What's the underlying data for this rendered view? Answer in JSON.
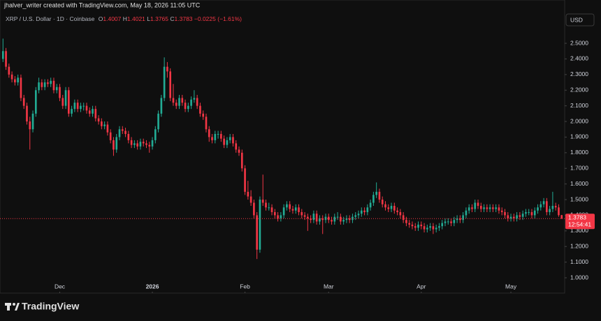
{
  "header": {
    "credit": "jhalver_writer created with TradingView.com, May 18, 2026 11:05 UTC",
    "symbol": "XRP / U.S. Dollar · 1D · Coinbase",
    "ohlc_labels": [
      "O",
      "H",
      "L",
      "C"
    ],
    "change": {
      "value": -0.0225,
      "label": "−0.0225"
    },
    "change_pct": {
      "value": -1.61,
      "label": "(−1.61%)"
    },
    "currency": "USD"
  },
  "chart_data": {
    "type": "candlestick",
    "up_color": "#22ab94",
    "down_color": "#f23645",
    "candles": [
      [
        2.4,
        2.53,
        2.38,
        2.45
      ],
      [
        2.45,
        2.47,
        2.33,
        2.35
      ],
      [
        2.35,
        2.37,
        2.28,
        2.3
      ],
      [
        2.3,
        2.32,
        2.25,
        2.27
      ],
      [
        2.27,
        2.29,
        2.23,
        2.25
      ],
      [
        2.25,
        2.3,
        2.23,
        2.28
      ],
      [
        2.28,
        2.3,
        2.13,
        2.15
      ],
      [
        2.15,
        2.17,
        2.08,
        2.1
      ],
      [
        2.1,
        2.12,
        1.98,
        2.0
      ],
      [
        2.0,
        2.03,
        1.82,
        1.95
      ],
      [
        1.95,
        2.07,
        1.93,
        2.05
      ],
      [
        2.05,
        2.22,
        2.03,
        2.2
      ],
      [
        2.2,
        2.28,
        2.18,
        2.25
      ],
      [
        2.25,
        2.27,
        2.2,
        2.22
      ],
      [
        2.22,
        2.27,
        2.2,
        2.25
      ],
      [
        2.25,
        2.27,
        2.22,
        2.24
      ],
      [
        2.24,
        2.28,
        2.22,
        2.26
      ],
      [
        2.26,
        2.28,
        2.18,
        2.2
      ],
      [
        2.2,
        2.24,
        2.18,
        2.22
      ],
      [
        2.22,
        2.24,
        2.13,
        2.15
      ],
      [
        2.15,
        2.17,
        2.08,
        2.1
      ],
      [
        2.1,
        2.22,
        2.08,
        2.2
      ],
      [
        2.2,
        2.22,
        2.03,
        2.05
      ],
      [
        2.05,
        2.1,
        2.03,
        2.08
      ],
      [
        2.08,
        2.14,
        2.06,
        2.12
      ],
      [
        2.12,
        2.14,
        2.06,
        2.08
      ],
      [
        2.08,
        2.12,
        2.06,
        2.1
      ],
      [
        2.1,
        2.12,
        2.07,
        2.1
      ],
      [
        2.1,
        2.12,
        2.05,
        2.07
      ],
      [
        2.07,
        2.09,
        2.03,
        2.05
      ],
      [
        2.05,
        2.1,
        2.03,
        2.08
      ],
      [
        2.08,
        2.1,
        2.0,
        2.02
      ],
      [
        2.02,
        2.04,
        1.98,
        2.0
      ],
      [
        2.0,
        2.02,
        1.95,
        1.97
      ],
      [
        1.97,
        2.0,
        1.95,
        1.98
      ],
      [
        1.98,
        2.0,
        1.91,
        1.93
      ],
      [
        1.93,
        1.95,
        1.86,
        1.88
      ],
      [
        1.88,
        1.9,
        1.78,
        1.82
      ],
      [
        1.82,
        1.92,
        1.8,
        1.9
      ],
      [
        1.9,
        1.97,
        1.88,
        1.95
      ],
      [
        1.95,
        1.97,
        1.92,
        1.94
      ],
      [
        1.94,
        1.96,
        1.9,
        1.92
      ],
      [
        1.92,
        1.94,
        1.86,
        1.88
      ],
      [
        1.88,
        1.9,
        1.83,
        1.85
      ],
      [
        1.85,
        1.88,
        1.83,
        1.86
      ],
      [
        1.86,
        1.88,
        1.82,
        1.84
      ],
      [
        1.84,
        1.89,
        1.82,
        1.87
      ],
      [
        1.87,
        1.89,
        1.84,
        1.86
      ],
      [
        1.86,
        1.88,
        1.83,
        1.85
      ],
      [
        1.85,
        1.87,
        1.8,
        1.84
      ],
      [
        1.84,
        1.9,
        1.82,
        1.88
      ],
      [
        1.88,
        1.97,
        1.86,
        1.95
      ],
      [
        1.95,
        2.07,
        1.93,
        2.05
      ],
      [
        2.05,
        2.17,
        2.03,
        2.15
      ],
      [
        2.15,
        2.41,
        2.13,
        2.35
      ],
      [
        2.35,
        2.38,
        2.28,
        2.32
      ],
      [
        2.32,
        2.34,
        2.13,
        2.15
      ],
      [
        2.15,
        2.24,
        2.1,
        2.12
      ],
      [
        2.12,
        2.14,
        2.08,
        2.1
      ],
      [
        2.1,
        2.17,
        2.08,
        2.15
      ],
      [
        2.15,
        2.17,
        2.1,
        2.12
      ],
      [
        2.12,
        2.14,
        2.06,
        2.08
      ],
      [
        2.08,
        2.12,
        2.06,
        2.1
      ],
      [
        2.1,
        2.16,
        2.08,
        2.14
      ],
      [
        2.14,
        2.2,
        2.12,
        2.15
      ],
      [
        2.15,
        2.17,
        2.08,
        2.1
      ],
      [
        2.1,
        2.12,
        2.03,
        2.05
      ],
      [
        2.05,
        2.07,
        2.01,
        2.03
      ],
      [
        2.03,
        2.05,
        1.93,
        1.95
      ],
      [
        1.95,
        1.97,
        1.87,
        1.9
      ],
      [
        1.9,
        1.92,
        1.86,
        1.88
      ],
      [
        1.88,
        1.94,
        1.86,
        1.92
      ],
      [
        1.92,
        1.94,
        1.89,
        1.92
      ],
      [
        1.92,
        1.94,
        1.87,
        1.89
      ],
      [
        1.89,
        1.91,
        1.83,
        1.85
      ],
      [
        1.85,
        1.9,
        1.83,
        1.88
      ],
      [
        1.88,
        1.92,
        1.86,
        1.9
      ],
      [
        1.9,
        1.92,
        1.84,
        1.86
      ],
      [
        1.86,
        1.88,
        1.8,
        1.82
      ],
      [
        1.82,
        1.84,
        1.78,
        1.8
      ],
      [
        1.8,
        1.82,
        1.68,
        1.7
      ],
      [
        1.7,
        1.72,
        1.53,
        1.55
      ],
      [
        1.55,
        1.62,
        1.5,
        1.52
      ],
      [
        1.52,
        1.56,
        1.46,
        1.48
      ],
      [
        1.48,
        1.5,
        1.38,
        1.4
      ],
      [
        1.4,
        1.42,
        1.12,
        1.18
      ],
      [
        1.18,
        1.52,
        1.16,
        1.5
      ],
      [
        1.5,
        1.66,
        1.46,
        1.48
      ],
      [
        1.48,
        1.5,
        1.43,
        1.45
      ],
      [
        1.45,
        1.48,
        1.43,
        1.45
      ],
      [
        1.45,
        1.47,
        1.4,
        1.42
      ],
      [
        1.42,
        1.44,
        1.38,
        1.4
      ],
      [
        1.4,
        1.42,
        1.36,
        1.38
      ],
      [
        1.38,
        1.42,
        1.36,
        1.4
      ],
      [
        1.4,
        1.47,
        1.38,
        1.45
      ],
      [
        1.45,
        1.49,
        1.43,
        1.47
      ],
      [
        1.47,
        1.49,
        1.42,
        1.44
      ],
      [
        1.44,
        1.46,
        1.41,
        1.43
      ],
      [
        1.43,
        1.47,
        1.41,
        1.45
      ],
      [
        1.45,
        1.47,
        1.4,
        1.42
      ],
      [
        1.42,
        1.44,
        1.38,
        1.4
      ],
      [
        1.4,
        1.42,
        1.37,
        1.39
      ],
      [
        1.39,
        1.41,
        1.3,
        1.38
      ],
      [
        1.38,
        1.4,
        1.35,
        1.37
      ],
      [
        1.37,
        1.43,
        1.35,
        1.41
      ],
      [
        1.41,
        1.43,
        1.34,
        1.36
      ],
      [
        1.36,
        1.4,
        1.34,
        1.38
      ],
      [
        1.38,
        1.4,
        1.28,
        1.37
      ],
      [
        1.37,
        1.41,
        1.35,
        1.39
      ],
      [
        1.39,
        1.41,
        1.35,
        1.37
      ],
      [
        1.37,
        1.39,
        1.34,
        1.36
      ],
      [
        1.36,
        1.41,
        1.34,
        1.39
      ],
      [
        1.39,
        1.42,
        1.37,
        1.39
      ],
      [
        1.39,
        1.41,
        1.34,
        1.36
      ],
      [
        1.36,
        1.39,
        1.34,
        1.37
      ],
      [
        1.37,
        1.4,
        1.35,
        1.38
      ],
      [
        1.38,
        1.4,
        1.35,
        1.37
      ],
      [
        1.37,
        1.41,
        1.35,
        1.39
      ],
      [
        1.39,
        1.42,
        1.37,
        1.4
      ],
      [
        1.4,
        1.43,
        1.38,
        1.41
      ],
      [
        1.41,
        1.45,
        1.39,
        1.43
      ],
      [
        1.43,
        1.45,
        1.4,
        1.42
      ],
      [
        1.42,
        1.47,
        1.4,
        1.45
      ],
      [
        1.45,
        1.5,
        1.43,
        1.48
      ],
      [
        1.48,
        1.55,
        1.46,
        1.53
      ],
      [
        1.53,
        1.61,
        1.51,
        1.55
      ],
      [
        1.55,
        1.57,
        1.48,
        1.5
      ],
      [
        1.5,
        1.52,
        1.45,
        1.47
      ],
      [
        1.47,
        1.49,
        1.43,
        1.45
      ],
      [
        1.45,
        1.47,
        1.42,
        1.44
      ],
      [
        1.44,
        1.48,
        1.42,
        1.46
      ],
      [
        1.46,
        1.48,
        1.41,
        1.43
      ],
      [
        1.43,
        1.45,
        1.4,
        1.42
      ],
      [
        1.42,
        1.44,
        1.38,
        1.4
      ],
      [
        1.4,
        1.42,
        1.35,
        1.37
      ],
      [
        1.37,
        1.39,
        1.33,
        1.35
      ],
      [
        1.35,
        1.37,
        1.32,
        1.34
      ],
      [
        1.34,
        1.36,
        1.31,
        1.33
      ],
      [
        1.33,
        1.35,
        1.3,
        1.32
      ],
      [
        1.32,
        1.36,
        1.3,
        1.34
      ],
      [
        1.34,
        1.36,
        1.31,
        1.33
      ],
      [
        1.33,
        1.35,
        1.29,
        1.31
      ],
      [
        1.31,
        1.34,
        1.29,
        1.32
      ],
      [
        1.32,
        1.35,
        1.3,
        1.33
      ],
      [
        1.33,
        1.35,
        1.28,
        1.31
      ],
      [
        1.31,
        1.34,
        1.29,
        1.32
      ],
      [
        1.32,
        1.35,
        1.3,
        1.33
      ],
      [
        1.33,
        1.37,
        1.31,
        1.35
      ],
      [
        1.35,
        1.38,
        1.33,
        1.36
      ],
      [
        1.36,
        1.38,
        1.34,
        1.36
      ],
      [
        1.36,
        1.38,
        1.33,
        1.35
      ],
      [
        1.35,
        1.39,
        1.33,
        1.37
      ],
      [
        1.37,
        1.4,
        1.35,
        1.38
      ],
      [
        1.38,
        1.4,
        1.35,
        1.37
      ],
      [
        1.37,
        1.42,
        1.35,
        1.4
      ],
      [
        1.4,
        1.45,
        1.38,
        1.43
      ],
      [
        1.43,
        1.47,
        1.41,
        1.45
      ],
      [
        1.45,
        1.47,
        1.42,
        1.44
      ],
      [
        1.44,
        1.5,
        1.42,
        1.48
      ],
      [
        1.48,
        1.5,
        1.44,
        1.46
      ],
      [
        1.46,
        1.48,
        1.42,
        1.44
      ],
      [
        1.44,
        1.47,
        1.42,
        1.45
      ],
      [
        1.45,
        1.47,
        1.42,
        1.44
      ],
      [
        1.44,
        1.47,
        1.42,
        1.45
      ],
      [
        1.45,
        1.47,
        1.42,
        1.44
      ],
      [
        1.44,
        1.47,
        1.42,
        1.45
      ],
      [
        1.45,
        1.47,
        1.41,
        1.43
      ],
      [
        1.43,
        1.45,
        1.4,
        1.42
      ],
      [
        1.42,
        1.44,
        1.38,
        1.4
      ],
      [
        1.4,
        1.42,
        1.36,
        1.38
      ],
      [
        1.38,
        1.41,
        1.36,
        1.39
      ],
      [
        1.39,
        1.41,
        1.36,
        1.38
      ],
      [
        1.38,
        1.42,
        1.36,
        1.4
      ],
      [
        1.4,
        1.42,
        1.37,
        1.39
      ],
      [
        1.39,
        1.43,
        1.37,
        1.41
      ],
      [
        1.41,
        1.44,
        1.39,
        1.42
      ],
      [
        1.42,
        1.44,
        1.4,
        1.42
      ],
      [
        1.42,
        1.44,
        1.38,
        1.4
      ],
      [
        1.4,
        1.45,
        1.38,
        1.43
      ],
      [
        1.43,
        1.47,
        1.41,
        1.45
      ],
      [
        1.45,
        1.49,
        1.43,
        1.47
      ],
      [
        1.47,
        1.51,
        1.45,
        1.49
      ],
      [
        1.49,
        1.51,
        1.4,
        1.42
      ],
      [
        1.42,
        1.46,
        1.4,
        1.44
      ],
      [
        1.44,
        1.55,
        1.42,
        1.46
      ],
      [
        1.46,
        1.48,
        1.43,
        1.45
      ],
      [
        1.45,
        1.47,
        1.39,
        1.4007
      ],
      [
        1.4007,
        1.4021,
        1.3765,
        1.3783
      ]
    ],
    "ylim": [
      0.902,
      2.652
    ],
    "yticks": [
      {
        "value": 1.0,
        "label": "1.0000"
      },
      {
        "value": 1.1,
        "label": "1.1000"
      },
      {
        "value": 1.2,
        "label": "1.2000"
      },
      {
        "value": 1.3,
        "label": "1.3000"
      },
      {
        "value": 1.4,
        "label": "1.4000"
      },
      {
        "value": 1.5,
        "label": "1.5000"
      },
      {
        "value": 1.6,
        "label": "1.6000"
      },
      {
        "value": 1.7,
        "label": "1.7000"
      },
      {
        "value": 1.8,
        "label": "1.8000"
      },
      {
        "value": 1.9,
        "label": "1.9000"
      },
      {
        "value": 2.0,
        "label": "2.0000"
      },
      {
        "value": 2.1,
        "label": "2.1000"
      },
      {
        "value": 2.2,
        "label": "2.2000"
      },
      {
        "value": 2.3,
        "label": "2.3000"
      },
      {
        "value": 2.4,
        "label": "2.4000"
      },
      {
        "value": 2.5,
        "label": "2.5000"
      }
    ],
    "xlim": [
      -1,
      188
    ],
    "xticks": [
      {
        "value": 19,
        "label": "Dec"
      },
      {
        "value": 50,
        "label": "2026"
      },
      {
        "value": 81,
        "label": "Feb"
      },
      {
        "value": 109,
        "label": "Mar"
      },
      {
        "value": 140,
        "label": "Apr"
      },
      {
        "value": 170,
        "label": "May"
      }
    ],
    "countdown": "12:54:41"
  },
  "footer": {
    "brand": "TradingView"
  }
}
